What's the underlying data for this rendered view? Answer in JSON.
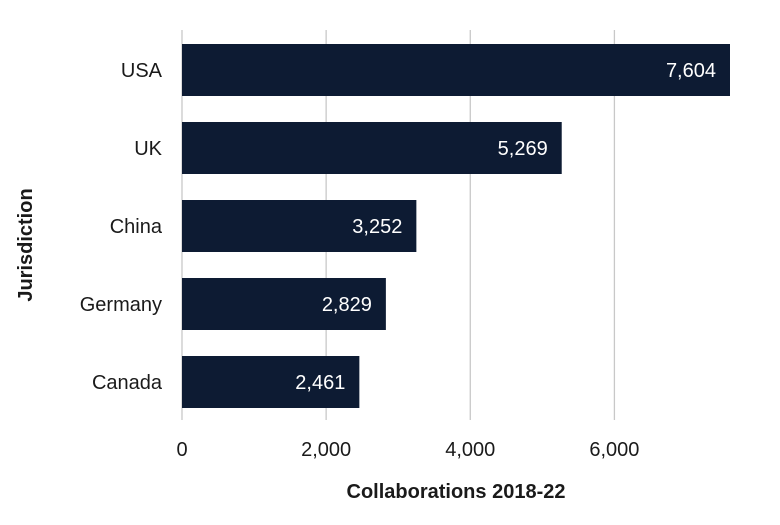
{
  "chart_data": {
    "type": "bar",
    "orientation": "horizontal",
    "categories": [
      "USA",
      "UK",
      "China",
      "Germany",
      "Canada"
    ],
    "values": [
      7604,
      5269,
      3252,
      2829,
      2461
    ],
    "value_labels": [
      "7,604",
      "5,269",
      "3,252",
      "2,829",
      "2,461"
    ],
    "xlabel": "Collaborations 2018-22",
    "ylabel": "Jurisdiction",
    "xlim": [
      0,
      7604
    ],
    "xticks": [
      0,
      2000,
      4000,
      6000
    ],
    "xtick_labels": [
      "0",
      "2,000",
      "4,000",
      "6,000"
    ],
    "grid": true,
    "bar_color": "#0d1b33",
    "value_label_color": "#ffffff",
    "grid_color": "#c8c8c8"
  }
}
